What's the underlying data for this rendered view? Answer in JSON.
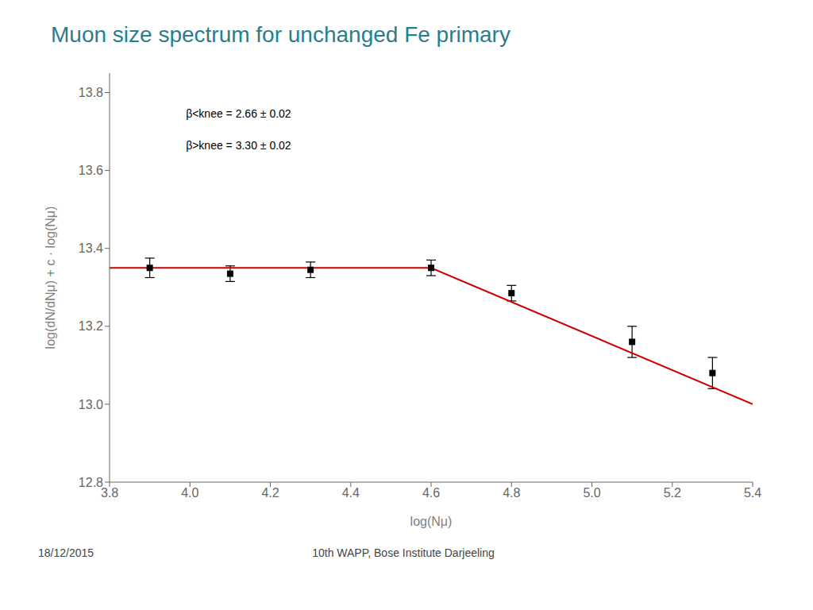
{
  "chart_data": {
    "type": "scatter",
    "title": "Muon size spectrum for unchanged Fe primary",
    "xlabel": "log(Nμ)",
    "ylabel": "log(dN/dNμ) + c · log(Nμ)",
    "xlim": [
      3.8,
      5.4
    ],
    "ylim": [
      12.8,
      13.85
    ],
    "xticks": [
      3.8,
      {
        "value": 4,
        "label": "4.0"
      },
      4.2,
      4.4,
      4.6,
      4.8,
      {
        "value": 5,
        "label": "5.0"
      },
      5.2,
      5.4
    ],
    "yticks": [
      12.8,
      {
        "value": 13,
        "label": "13.0"
      },
      13.2,
      13.4,
      13.6,
      13.8
    ],
    "grid": false,
    "series": [
      {
        "type": "scatter",
        "color": "#000000",
        "marker": "square",
        "x": [
          3.9,
          4.1,
          4.3,
          4.6,
          4.8,
          5.1,
          5.3
        ],
        "values": [
          13.35,
          13.335,
          13.345,
          13.35,
          13.285,
          13.16,
          13.08
        ],
        "errors": [
          0.025,
          0.02,
          0.02,
          0.02,
          0.02,
          0.04,
          0.04
        ]
      },
      {
        "type": "line",
        "color": "#cc0000",
        "line_style": "solid",
        "x": [
          3.8,
          4.6,
          5.4
        ],
        "values": [
          13.35,
          13.35,
          13.0
        ]
      }
    ],
    "annotations": [
      {
        "text": "β<knee = 2.66 ± 0.02",
        "x": 3.98,
        "y": 13.745
      },
      {
        "text": "β>knee = 3.30 ± 0.02",
        "x": 3.98,
        "y": 13.665
      }
    ],
    "footer": [
      "18/12/2015",
      "10th WAPP, Bose Institute Darjeeling"
    ]
  }
}
